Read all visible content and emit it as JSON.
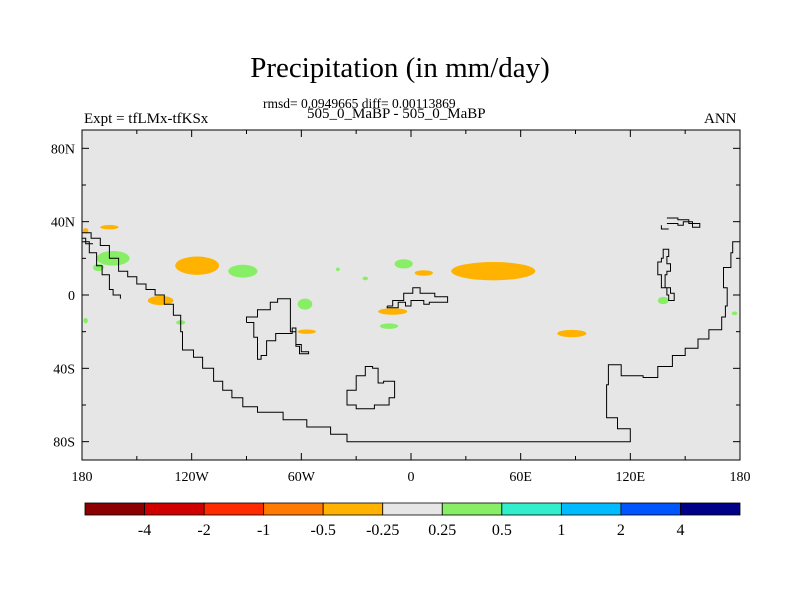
{
  "title": "Precipitation (in mm/day)",
  "subtitle": "rmsd= 0.0949665 diff= 0.00113869",
  "left_label": "Expt = tfLMx-tfKSx",
  "center_label": "505_0_MaBP - 505_0_MaBP",
  "right_label": "ANN",
  "chart_data": {
    "type": "heatmap",
    "title": "Precipitation (in mm/day)",
    "subtitle": "rmsd= 0.0949665 diff= 0.00113869",
    "x_ticks": [
      {
        "value": -180,
        "label": "180"
      },
      {
        "value": -120,
        "label": "120W"
      },
      {
        "value": -60,
        "label": "60W"
      },
      {
        "value": 0,
        "label": "0"
      },
      {
        "value": 60,
        "label": "60E"
      },
      {
        "value": 120,
        "label": "120E"
      },
      {
        "value": 180,
        "label": "180"
      }
    ],
    "y_ticks": [
      {
        "value": 80,
        "label": "80N"
      },
      {
        "value": 40,
        "label": "40N"
      },
      {
        "value": 0,
        "label": "0"
      },
      {
        "value": -40,
        "label": "40S"
      },
      {
        "value": -80,
        "label": "80S"
      }
    ],
    "xlim": [
      -180,
      180
    ],
    "ylim": [
      -90,
      90
    ],
    "background_color": "#e6e6e6",
    "colorbar": {
      "labels": [
        "-4",
        "-2",
        "-1",
        "-0.5",
        "-0.25",
        "0.25",
        "0.5",
        "1",
        "2",
        "4"
      ],
      "colors": [
        "#8b0000",
        "#d00000",
        "#ff2a00",
        "#ff7a00",
        "#ffb300",
        "#e6e6e6",
        "#88ee66",
        "#33eecc",
        "#00bbff",
        "#0055ff",
        "#000088"
      ]
    },
    "anomaly_regions": [
      {
        "class": "-0.25",
        "color": "#ffb300",
        "lon": -165,
        "lat": 37,
        "rx": 5,
        "ry": 1.2
      },
      {
        "class": "-0.25",
        "color": "#ffb300",
        "lon": -178,
        "lat": 35,
        "rx": 1.5,
        "ry": 1.5
      },
      {
        "class": "-0.25",
        "color": "#ffb300",
        "lon": -117,
        "lat": 16,
        "rx": 12,
        "ry": 5
      },
      {
        "class": "-0.25",
        "color": "#ffb300",
        "lon": -137,
        "lat": -3,
        "rx": 7,
        "ry": 2.5
      },
      {
        "class": "-0.25",
        "color": "#ffb300",
        "lon": -10,
        "lat": -9,
        "rx": 8,
        "ry": 1.8
      },
      {
        "class": "-0.25",
        "color": "#ffb300",
        "lon": 7,
        "lat": 12,
        "rx": 5,
        "ry": 1.5
      },
      {
        "class": "-0.25",
        "color": "#ffb300",
        "lon": 45,
        "lat": 13,
        "rx": 23,
        "ry": 5
      },
      {
        "class": "-0.25",
        "color": "#ffb300",
        "lon": 88,
        "lat": -21,
        "rx": 8,
        "ry": 2
      },
      {
        "class": "-0.25",
        "color": "#ffb300",
        "lon": -57,
        "lat": -20,
        "rx": 5,
        "ry": 1.2
      },
      {
        "class": "0.25",
        "color": "#88ee66",
        "lon": -163,
        "lat": 20,
        "rx": 9,
        "ry": 4
      },
      {
        "class": "0.25",
        "color": "#88ee66",
        "lon": -171,
        "lat": 15,
        "rx": 3,
        "ry": 2
      },
      {
        "class": "0.25",
        "color": "#88ee66",
        "lon": -92,
        "lat": 13,
        "rx": 8,
        "ry": 3.5
      },
      {
        "class": "0.25",
        "color": "#88ee66",
        "lon": -4,
        "lat": 17,
        "rx": 5,
        "ry": 2.5
      },
      {
        "class": "0.25",
        "color": "#88ee66",
        "lon": -58,
        "lat": -5,
        "rx": 4,
        "ry": 3
      },
      {
        "class": "0.25",
        "color": "#88ee66",
        "lon": -12,
        "lat": -17,
        "rx": 5,
        "ry": 1.5
      },
      {
        "class": "0.25",
        "color": "#88ee66",
        "lon": -178,
        "lat": -14,
        "rx": 1.2,
        "ry": 1.5
      },
      {
        "class": "0.25",
        "color": "#88ee66",
        "lon": -126,
        "lat": -15,
        "rx": 2.5,
        "ry": 1.2
      },
      {
        "class": "0.25",
        "color": "#88ee66",
        "lon": -25,
        "lat": 9,
        "rx": 1.5,
        "ry": 1
      },
      {
        "class": "0.25",
        "color": "#88ee66",
        "lon": -40,
        "lat": 14,
        "rx": 1,
        "ry": 1
      },
      {
        "class": "0.25",
        "color": "#88ee66",
        "lon": 138,
        "lat": -3,
        "rx": 3,
        "ry": 2
      },
      {
        "class": "0.25",
        "color": "#88ee66",
        "lon": 177,
        "lat": -10,
        "rx": 1.5,
        "ry": 1
      }
    ],
    "continent_outlines": [
      [
        [
          -180,
          34
        ],
        [
          -175,
          34
        ],
        [
          -175,
          31
        ],
        [
          -170,
          31
        ],
        [
          -170,
          27
        ],
        [
          -165,
          27
        ],
        [
          -165,
          20
        ],
        [
          -160,
          20
        ],
        [
          -160,
          13
        ],
        [
          -155,
          13
        ],
        [
          -155,
          10
        ],
        [
          -150,
          10
        ],
        [
          -150,
          6
        ],
        [
          -145,
          6
        ],
        [
          -145,
          3
        ],
        [
          -140,
          3
        ],
        [
          -140,
          0
        ],
        [
          -135,
          0
        ],
        [
          -135,
          -5
        ],
        [
          -130,
          -5
        ],
        [
          -130,
          -11
        ],
        [
          -126,
          -11
        ],
        [
          -126,
          -20
        ],
        [
          -125,
          -20
        ],
        [
          -125,
          -30
        ],
        [
          -119,
          -30
        ],
        [
          -119,
          -34
        ],
        [
          -114,
          -34
        ],
        [
          -114,
          -40
        ],
        [
          -108,
          -40
        ],
        [
          -108,
          -47
        ],
        [
          -103,
          -47
        ],
        [
          -103,
          -52
        ],
        [
          -98,
          -52
        ],
        [
          -98,
          -56
        ],
        [
          -92,
          -56
        ],
        [
          -92,
          -61
        ],
        [
          -84,
          -61
        ],
        [
          -84,
          -64
        ],
        [
          -70,
          -64
        ],
        [
          -70,
          -68
        ],
        [
          -57,
          -68
        ],
        [
          -57,
          -72
        ],
        [
          -44,
          -72
        ],
        [
          -44,
          -76
        ],
        [
          -35,
          -76
        ],
        [
          -35,
          -80
        ],
        [
          120,
          -80
        ],
        [
          120,
          -73
        ],
        [
          113,
          -73
        ],
        [
          113,
          -67
        ],
        [
          107,
          -67
        ],
        [
          107,
          -49
        ],
        [
          108,
          -49
        ],
        [
          108,
          -38
        ],
        [
          115,
          -38
        ],
        [
          115,
          -44
        ],
        [
          127,
          -44
        ],
        [
          127,
          -45
        ],
        [
          135,
          -45
        ],
        [
          135,
          -39
        ],
        [
          143,
          -39
        ],
        [
          143,
          -33
        ],
        [
          150,
          -33
        ],
        [
          150,
          -29
        ],
        [
          157,
          -29
        ],
        [
          157,
          -24
        ],
        [
          163,
          -24
        ],
        [
          163,
          -19
        ],
        [
          170,
          -19
        ],
        [
          170,
          -12
        ],
        [
          172,
          -12
        ],
        [
          172,
          -6
        ],
        [
          173,
          -6
        ],
        [
          173,
          4
        ],
        [
          171,
          4
        ],
        [
          171,
          15
        ],
        [
          175,
          15
        ],
        [
          175,
          23
        ],
        [
          176,
          23
        ],
        [
          176,
          29
        ],
        [
          180,
          29
        ]
      ],
      [
        [
          -180,
          29
        ],
        [
          -176,
          29
        ],
        [
          -176,
          23
        ],
        [
          -172,
          23
        ],
        [
          -172,
          16
        ],
        [
          -169,
          16
        ],
        [
          -169,
          11
        ],
        [
          -165,
          11
        ],
        [
          -165,
          3
        ],
        [
          -163,
          3
        ],
        [
          -163,
          0
        ],
        [
          -159,
          0
        ],
        [
          -159,
          -2
        ]
      ],
      [
        [
          -180,
          31
        ],
        [
          -178,
          31
        ],
        [
          -178,
          28
        ],
        [
          -174,
          28
        ]
      ],
      [
        [
          -90,
          -15
        ],
        [
          -90,
          -12
        ],
        [
          -84,
          -12
        ],
        [
          -84,
          -8
        ],
        [
          -77,
          -8
        ],
        [
          -77,
          -4
        ],
        [
          -73,
          -4
        ],
        [
          -73,
          -2
        ],
        [
          -66,
          -2
        ],
        [
          -66,
          -20
        ],
        [
          -63,
          -20
        ],
        [
          -63,
          -28
        ],
        [
          -61,
          -28
        ],
        [
          -61,
          -32
        ],
        [
          -56,
          -32
        ],
        [
          -56,
          -31
        ],
        [
          -60,
          -31
        ],
        [
          -60,
          -27
        ],
        [
          -63,
          -27
        ],
        [
          -63,
          -18
        ],
        [
          -65,
          -18
        ],
        [
          -65,
          -21
        ],
        [
          -74,
          -21
        ],
        [
          -74,
          -25
        ],
        [
          -79,
          -25
        ],
        [
          -79,
          -33
        ],
        [
          -82,
          -33
        ],
        [
          -82,
          -35
        ],
        [
          -84,
          -35
        ],
        [
          -84,
          -23
        ],
        [
          -86,
          -23
        ],
        [
          -86,
          -15
        ],
        [
          -90,
          -15
        ]
      ],
      [
        [
          -13,
          -6
        ],
        [
          -10,
          -6
        ],
        [
          -10,
          -3
        ],
        [
          -4,
          -3
        ],
        [
          -4,
          1
        ],
        [
          1,
          1
        ],
        [
          1,
          4
        ],
        [
          5,
          4
        ],
        [
          5,
          1
        ],
        [
          13,
          1
        ],
        [
          13,
          -1
        ],
        [
          20,
          -1
        ],
        [
          20,
          -4
        ],
        [
          10,
          -4
        ],
        [
          10,
          -5
        ],
        [
          7,
          -5
        ],
        [
          7,
          -3
        ],
        [
          0,
          -3
        ],
        [
          0,
          -6
        ],
        [
          -3,
          -6
        ],
        [
          -3,
          -4
        ],
        [
          -7,
          -4
        ],
        [
          -7,
          -7
        ],
        [
          -13,
          -7
        ],
        [
          -13,
          -6
        ]
      ],
      [
        [
          -35,
          -55
        ],
        [
          -35,
          -60
        ],
        [
          -30,
          -60
        ],
        [
          -30,
          -62
        ],
        [
          -20,
          -62
        ],
        [
          -20,
          -60
        ],
        [
          -12,
          -60
        ],
        [
          -12,
          -56
        ],
        [
          -9,
          -56
        ],
        [
          -9,
          -47
        ],
        [
          -15,
          -47
        ],
        [
          -15,
          -48
        ],
        [
          -18,
          -48
        ],
        [
          -18,
          -40
        ],
        [
          -21,
          -40
        ],
        [
          -21,
          -39
        ],
        [
          -25,
          -39
        ],
        [
          -25,
          -44
        ],
        [
          -30,
          -44
        ],
        [
          -30,
          -52
        ],
        [
          -35,
          -52
        ],
        [
          -35,
          -55
        ]
      ],
      [
        [
          140,
          42
        ],
        [
          146,
          42
        ],
        [
          146,
          41
        ],
        [
          152,
          41
        ],
        [
          152,
          39
        ],
        [
          158,
          39
        ],
        [
          158,
          37
        ],
        [
          154,
          37
        ],
        [
          154,
          40
        ],
        [
          149,
          40
        ],
        [
          149,
          38
        ],
        [
          146,
          38
        ],
        [
          146,
          39
        ],
        [
          140,
          39
        ]
      ],
      [
        [
          137,
          38
        ],
        [
          137,
          36
        ],
        [
          141,
          36
        ]
      ],
      [
        [
          138,
          23
        ],
        [
          138,
          20
        ],
        [
          137,
          20
        ],
        [
          137,
          18
        ],
        [
          135,
          18
        ],
        [
          135,
          11
        ],
        [
          137,
          11
        ],
        [
          137,
          4
        ],
        [
          140,
          4
        ],
        [
          140,
          0
        ],
        [
          141,
          0
        ],
        [
          141,
          -3
        ],
        [
          144,
          -3
        ],
        [
          144,
          1
        ],
        [
          142,
          1
        ],
        [
          142,
          4
        ],
        [
          139,
          4
        ],
        [
          139,
          11
        ],
        [
          140,
          11
        ],
        [
          140,
          13
        ],
        [
          142,
          13
        ],
        [
          142,
          17
        ],
        [
          140,
          17
        ],
        [
          140,
          21
        ],
        [
          141,
          21
        ],
        [
          141,
          25
        ],
        [
          138,
          25
        ],
        [
          138,
          23
        ]
      ]
    ]
  }
}
